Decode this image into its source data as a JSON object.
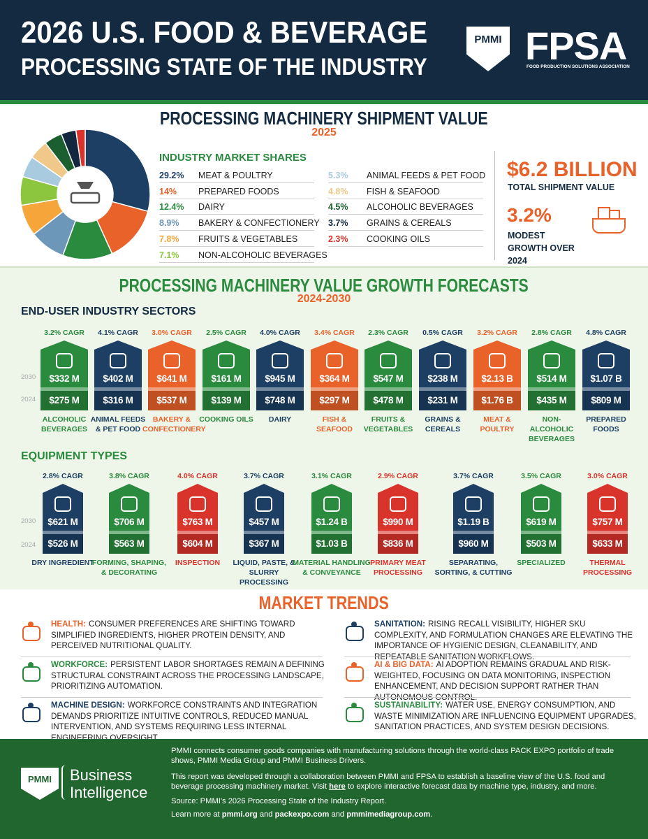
{
  "header": {
    "title_line1": "2026 U.S. FOOD & BEVERAGE",
    "title_line2": "PROCESSING STATE OF THE INDUSTRY",
    "logo_pmmi": "PMMI",
    "logo_fpsa": "FPSA",
    "fpsa_tagline": "FOOD PRODUCTION SOLUTIONS ASSOCIATION"
  },
  "shipment": {
    "title": "PROCESSING MACHINERY SHIPMENT VALUE",
    "year": "2025",
    "shares_title": "INDUSTRY MARKET SHARES",
    "total": "$6.2 BILLION",
    "total_label": "TOTAL SHIPMENT VALUE",
    "growth": "3.2%",
    "growth_label": "MODEST GROWTH OVER 2024"
  },
  "chart_data": {
    "type": "pie",
    "donut": true,
    "categories": [
      "MEAT & POULTRY",
      "PREPARED FOODS",
      "DAIRY",
      "BAKERY & CONFECTIONERY",
      "FRUITS & VEGETABLES",
      "NON-ALCOHOLIC BEVERAGES",
      "ANIMAL FEEDS & PET FOOD",
      "FISH & SEAFOOD",
      "ALCOHOLIC BEVERAGES",
      "GRAINS & CEREALS",
      "COOKING OILS"
    ],
    "values": [
      29.2,
      14,
      12.4,
      8.9,
      7.8,
      7.1,
      5.3,
      4.8,
      4.5,
      3.7,
      2.3
    ],
    "value_labels": [
      "29.2%",
      "14%",
      "12.4%",
      "8.9%",
      "7.8%",
      "7.1%",
      "5.3%",
      "4.8%",
      "4.5%",
      "3.7%",
      "2.3%"
    ],
    "colors": [
      "#1c3f63",
      "#e8622a",
      "#2a8a3e",
      "#6c97b8",
      "#f5a53a",
      "#8cc63f",
      "#a9cbe0",
      "#f0c98a",
      "#1b5e30",
      "#13283f",
      "#d9342b"
    ]
  },
  "forecasts": {
    "title": "PROCESSING MACHINERY VALUE GROWTH FORECASTS",
    "years": "2024-2030",
    "sectors_title": "END-USER INDUSTRY SECTORS",
    "equipment_title": "EQUIPMENT TYPES",
    "year_labels": [
      "2030",
      "2024"
    ],
    "sectors": [
      {
        "cagr": "3.2% CAGR",
        "v2030": "$332 M",
        "v2024": "$275 M",
        "name": "ALCOHOLIC BEVERAGES",
        "color": "#2a8a3e"
      },
      {
        "cagr": "4.1% CAGR",
        "v2030": "$402 M",
        "v2024": "$316 M",
        "name": "ANIMAL FEEDS & PET FOOD",
        "color": "#1c3f63"
      },
      {
        "cagr": "3.0% CAGR",
        "v2030": "$641 M",
        "v2024": "$537 M",
        "name": "BAKERY & CONFECTIONERY",
        "color": "#e8622a"
      },
      {
        "cagr": "2.5% CAGR",
        "v2030": "$161 M",
        "v2024": "$139 M",
        "name": "COOKING OILS",
        "color": "#2a8a3e"
      },
      {
        "cagr": "4.0% CAGR",
        "v2030": "$945 M",
        "v2024": "$748 M",
        "name": "DAIRY",
        "color": "#1c3f63"
      },
      {
        "cagr": "3.4% CAGR",
        "v2030": "$364 M",
        "v2024": "$297 M",
        "name": "FISH & SEAFOOD",
        "color": "#e8622a"
      },
      {
        "cagr": "2.3% CAGR",
        "v2030": "$547 M",
        "v2024": "$478 M",
        "name": "FRUITS & VEGETABLES",
        "color": "#2a8a3e"
      },
      {
        "cagr": "0.5% CAGR",
        "v2030": "$238 M",
        "v2024": "$231 M",
        "name": "GRAINS & CEREALS",
        "color": "#1c3f63"
      },
      {
        "cagr": "3.2% CAGR",
        "v2030": "$2.13 B",
        "v2024": "$1.76 B",
        "name": "MEAT & POULTRY",
        "color": "#e8622a"
      },
      {
        "cagr": "2.8% CAGR",
        "v2030": "$514 M",
        "v2024": "$435 M",
        "name": "NON-ALCOHOLIC BEVERAGES",
        "color": "#2a8a3e"
      },
      {
        "cagr": "4.8% CAGR",
        "v2030": "$1.07 B",
        "v2024": "$809 M",
        "name": "PREPARED FOODS",
        "color": "#1c3f63"
      }
    ],
    "equipment": [
      {
        "cagr": "2.8% CAGR",
        "v2030": "$621 M",
        "v2024": "$526 M",
        "name": "DRY INGREDIENT",
        "color": "#1c3f63"
      },
      {
        "cagr": "3.8% CAGR",
        "v2030": "$706 M",
        "v2024": "$563 M",
        "name": "FORMING, SHAPING, & DECORATING",
        "color": "#2a8a3e"
      },
      {
        "cagr": "4.0% CAGR",
        "v2030": "$763 M",
        "v2024": "$604 M",
        "name": "INSPECTION",
        "color": "#d9342b"
      },
      {
        "cagr": "3.7% CAGR",
        "v2030": "$457 M",
        "v2024": "$367 M",
        "name": "LIQUID, PASTE, & SLURRY PROCESSING",
        "color": "#1c3f63"
      },
      {
        "cagr": "3.1% CAGR",
        "v2030": "$1.24 B",
        "v2024": "$1.03 B",
        "name": "MATERIAL HANDLING & CONVEYANCE",
        "color": "#2a8a3e"
      },
      {
        "cagr": "2.9% CAGR",
        "v2030": "$990 M",
        "v2024": "$836 M",
        "name": "PRIMARY MEAT PROCESSING",
        "color": "#d9342b"
      },
      {
        "cagr": "3.7% CAGR",
        "v2030": "$1.19 B",
        "v2024": "$960 M",
        "name": "SEPARATING, SORTING, & CUTTING",
        "color": "#1c3f63"
      },
      {
        "cagr": "3.5% CAGR",
        "v2030": "$619 M",
        "v2024": "$503 M",
        "name": "SPECIALIZED",
        "color": "#2a8a3e"
      },
      {
        "cagr": "3.0% CAGR",
        "v2030": "$757 M",
        "v2024": "$633 M",
        "name": "THERMAL PROCESSING",
        "color": "#d9342b"
      }
    ]
  },
  "trends": {
    "title": "MARKET TRENDS",
    "items": [
      {
        "label": "HEALTH:",
        "text": "CONSUMER PREFERENCES ARE SHIFTING TOWARD SIMPLIFIED INGREDIENTS, HIGHER PROTEIN DENSITY, AND PERCEIVED NUTRITIONAL QUALITY.",
        "color": "#e8622a"
      },
      {
        "label": "WORKFORCE:",
        "text": "PERSISTENT LABOR SHORTAGES REMAIN A DEFINING STRUCTURAL CONSTRAINT ACROSS THE PROCESSING LANDSCAPE, PRIORITIZING AUTOMATION.",
        "color": "#2a8a3e"
      },
      {
        "label": "MACHINE DESIGN:",
        "text": "WORKFORCE CONSTRAINTS AND INTEGRATION DEMANDS PRIORITIZE INTUITIVE CONTROLS, REDUCED MANUAL INTERVENTION, AND SYSTEMS REQUIRING LESS INTERNAL ENGINEERING OVERSIGHT.",
        "color": "#1c3f63"
      },
      {
        "label": "SANITATION:",
        "text": "RISING RECALL VISIBILITY, HIGHER SKU COMPLEXITY, AND FORMULATION CHANGES ARE ELEVATING THE IMPORTANCE OF HYGIENIC DESIGN, CLEANABILITY, AND REPEATABLE SANITATION WORKFLOWS.",
        "color": "#1c3f63"
      },
      {
        "label": "AI & BIG DATA:",
        "text": "AI ADOPTION REMAINS GRADUAL AND RISK-WEIGHTED, FOCUSING ON DATA MONITORING, INSPECTION ENHANCEMENT, AND DECISION SUPPORT RATHER THAN AUTONOMOUS CONTROL.",
        "color": "#e8622a"
      },
      {
        "label": "SUSTAINABILITY:",
        "text": "WATER USE, ENERGY CONSUMPTION, AND WASTE MINIMIZATION ARE INFLUENCING EQUIPMENT UPGRADES, SANITATION PRACTICES, AND SYSTEM DESIGN DECISIONS.",
        "color": "#2a8a3e"
      }
    ]
  },
  "footer": {
    "logo": "PMMI",
    "brand_line1": "Business",
    "brand_line2": "Intelligence",
    "paragraphs": [
      [
        "PMMI connects consumer goods companies with manufacturing solutions through the world-class PACK EXPO portfolio of trade shows, PMMI Media Group and PMMI Business Drivers."
      ],
      [
        "This report was developed through a collaboration between PMMI and FPSA to establish a baseline view of the U.S. food and beverage processing machinery market. Visit ",
        "here",
        " to explore interactive forecast data by machine type, industry, and more."
      ],
      [
        "Source: PMMI's 2026 Processing State of the Industry Report."
      ],
      [
        "Learn more at ",
        "pmmi.org",
        " and ",
        "packexpo.com",
        " and ",
        "pmmimediagroup.com",
        "."
      ]
    ]
  }
}
